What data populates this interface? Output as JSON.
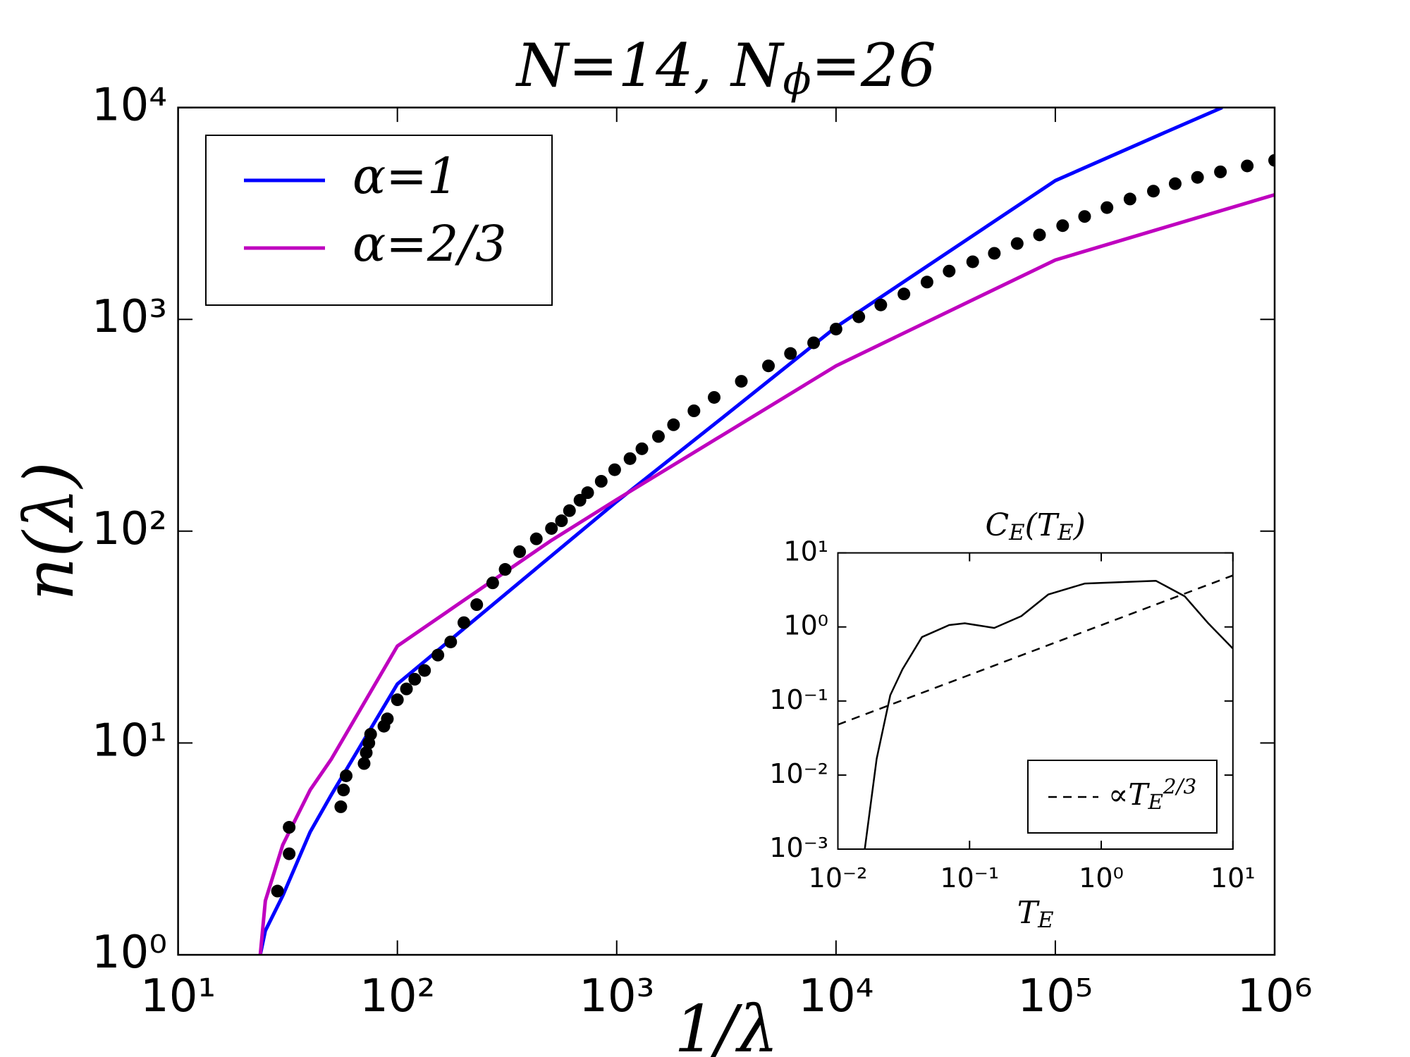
{
  "chart_data": [
    {
      "type": "line",
      "title": "N=14, N_ϕ=26",
      "xlabel": "1/λ",
      "ylabel": "n(λ)",
      "xscale": "log",
      "yscale": "log",
      "xlim": [
        10,
        1000000
      ],
      "ylim": [
        1,
        10000
      ],
      "xticks": [
        {
          "value": 10,
          "label": "10¹"
        },
        {
          "value": 100,
          "label": "10²"
        },
        {
          "value": 1000,
          "label": "10³"
        },
        {
          "value": 10000,
          "label": "10⁴"
        },
        {
          "value": 100000,
          "label": "10⁵"
        },
        {
          "value": 1000000,
          "label": "10⁶"
        }
      ],
      "yticks": [
        {
          "value": 1,
          "label": "10⁰"
        },
        {
          "value": 10,
          "label": "10¹"
        },
        {
          "value": 100,
          "label": "10²"
        },
        {
          "value": 1000,
          "label": "10³"
        },
        {
          "value": 10000,
          "label": "10⁴"
        }
      ],
      "legend": "upper left",
      "series": [
        {
          "name": "α=1",
          "color": "#0000ff",
          "linestyle": "solid",
          "x": [
            23.7,
            25,
            30,
            40,
            50,
            100,
            200,
            500,
            1000,
            3000,
            10000,
            30000,
            100000,
            300000,
            577000
          ],
          "values": [
            1,
            1.3,
            1.9,
            3.8,
            5.7,
            19,
            34.5,
            76,
            138,
            340,
            920,
            1966,
            4518,
            7450,
            10000
          ]
        },
        {
          "name": "α=2/3",
          "color": "#bf00bf",
          "linestyle": "solid",
          "x": [
            23.7,
            25,
            30,
            40,
            50,
            100,
            200,
            500,
            1000,
            3000,
            10000,
            30000,
            100000,
            300000,
            1000000
          ],
          "values": [
            1,
            1.8,
            3.3,
            6,
            8.4,
            28.7,
            47,
            90,
            141,
            282,
            603,
            1045,
            1906,
            2676,
            3875
          ]
        },
        {
          "color": "#000000",
          "linestyle": "none",
          "marker": "o",
          "x": [
            28.4,
            32.1,
            32.1,
            55.2,
            56.8,
            58.4,
            70.5,
            72.1,
            74.1,
            75.5,
            86.8,
            90,
            100,
            110,
            120,
            133,
            153,
            175,
            201,
            230,
            272,
            310,
            361,
            430,
            504,
            560,
            609,
            680,
            737,
            850,
            979,
            1150,
            1303,
            1550,
            1816,
            2250,
            2782,
            3700,
            4920,
            6200,
            7906,
            10000,
            12700,
            16000,
            20400,
            26000,
            32800,
            42000,
            52700,
            67000,
            84700,
            108000,
            136000,
            172000,
            219000,
            280000,
            352000,
            445000,
            566000,
            750000,
            1000000
          ],
          "values": [
            2,
            3,
            4,
            5,
            6,
            7,
            8,
            9,
            10,
            11,
            12,
            13,
            16,
            18,
            20,
            22,
            26,
            30,
            37,
            45,
            57,
            66,
            80,
            92,
            103,
            112,
            125,
            140,
            152,
            172,
            195,
            220,
            245,
            280,
            318,
            370,
            428,
            510,
            603,
            690,
            775,
            900,
            1028,
            1170,
            1318,
            1500,
            1690,
            1870,
            2050,
            2280,
            2505,
            2770,
            3060,
            3370,
            3700,
            4030,
            4370,
            4680,
            4970,
            5300,
            5630
          ]
        }
      ]
    },
    {
      "type": "line",
      "title": "C_E(T_E)",
      "xlabel": "T_E",
      "xscale": "log",
      "yscale": "log",
      "xlim": [
        0.01,
        10
      ],
      "ylim": [
        0.001,
        10
      ],
      "xticks": [
        {
          "value": 0.01,
          "label": "10⁻²"
        },
        {
          "value": 0.1,
          "label": "10⁻¹"
        },
        {
          "value": 1,
          "label": "10⁰"
        },
        {
          "value": 10,
          "label": "10¹"
        }
      ],
      "yticks": [
        {
          "value": 0.001,
          "label": "10⁻³"
        },
        {
          "value": 0.01,
          "label": "10⁻²"
        },
        {
          "value": 0.1,
          "label": "10⁻¹"
        },
        {
          "value": 1,
          "label": "10⁰"
        },
        {
          "value": 10,
          "label": "10¹"
        }
      ],
      "legend": "lower right",
      "series": [
        {
          "color": "#000000",
          "linestyle": "solid",
          "x": [
            0.016,
            0.0197,
            0.025,
            0.031,
            0.0435,
            0.07,
            0.092,
            0.154,
            0.247,
            0.397,
            0.748,
            1.65,
            2.6,
            4.3,
            6.5,
            10
          ],
          "values": [
            0.001,
            0.0166,
            0.12,
            0.27,
            0.73,
            1.06,
            1.12,
            0.97,
            1.4,
            2.75,
            3.85,
            4.07,
            4.2,
            2.6,
            1.12,
            0.51
          ]
        },
        {
          "name": "∝T_E^{2/3}",
          "color": "#000000",
          "linestyle": "dashed",
          "x": [
            0.01,
            10
          ],
          "values": [
            0.048,
            4.96
          ]
        }
      ]
    }
  ]
}
